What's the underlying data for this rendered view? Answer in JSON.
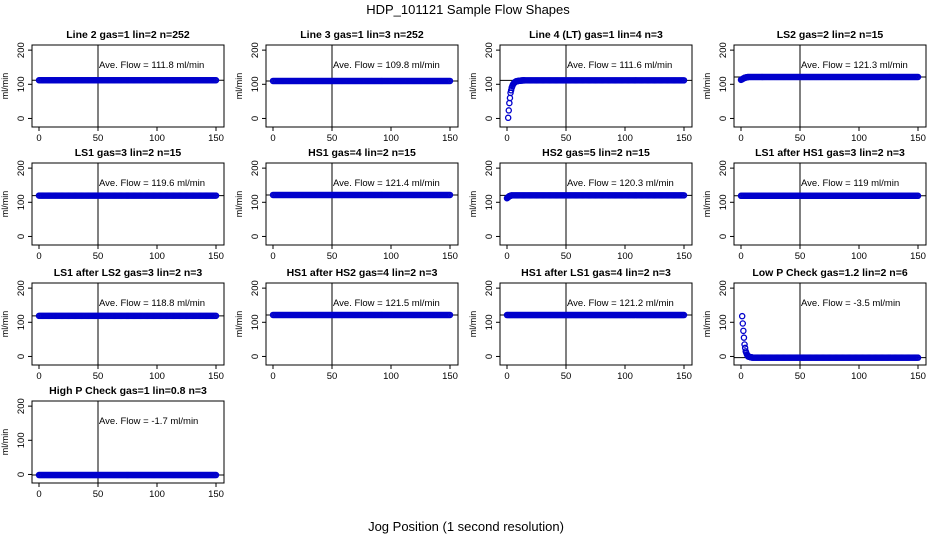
{
  "figure": {
    "title": "HDP_101121  Sample Flow Shapes",
    "xlabel": "Jog Position (1 second resolution)"
  },
  "chart_data": [
    {
      "type": "scatter",
      "title": "Line 2 gas=1 lin=2 n=252",
      "ylabel": "ml/min",
      "annotation": "Ave. Flow =  111.8  ml/min",
      "xlim": [
        0,
        150
      ],
      "ylim": [
        -25,
        215
      ],
      "xticks": [
        0,
        50,
        100,
        150
      ],
      "yticks": [
        0,
        100,
        200
      ],
      "vline": 50,
      "hline": 111.8,
      "series": [
        {
          "points": [
            [
              0,
              111.8
            ],
            [
              150,
              111.8
            ]
          ]
        }
      ],
      "color": "#0000cc"
    },
    {
      "type": "scatter",
      "title": "Line 3 gas=1 lin=3 n=252",
      "ylabel": "ml/min",
      "annotation": "Ave. Flow =  109.8  ml/min",
      "xlim": [
        0,
        150
      ],
      "ylim": [
        -25,
        215
      ],
      "xticks": [
        0,
        50,
        100,
        150
      ],
      "yticks": [
        0,
        100,
        200
      ],
      "vline": 50,
      "hline": 109.8,
      "series": [
        {
          "points": [
            [
              0,
              109.8
            ],
            [
              150,
              109.8
            ]
          ]
        }
      ],
      "color": "#0000cc"
    },
    {
      "type": "scatter",
      "title": "Line 4 (LT) gas=1 lin=4 n=3",
      "ylabel": "ml/min",
      "annotation": "Ave. Flow =  111.6  ml/min",
      "xlim": [
        0,
        150
      ],
      "ylim": [
        -25,
        215
      ],
      "xticks": [
        0,
        50,
        100,
        150
      ],
      "yticks": [
        0,
        100,
        200
      ],
      "vline": 50,
      "hline": 111.6,
      "series": [
        {
          "points": [
            [
              1,
              2
            ],
            [
              2,
              45
            ],
            [
              3,
              75
            ],
            [
              4,
              90
            ],
            [
              5,
              99
            ],
            [
              6,
              104
            ],
            [
              7,
              107
            ],
            [
              8,
              109
            ],
            [
              10,
              110
            ],
            [
              12,
              111
            ],
            [
              15,
              111.6
            ],
            [
              150,
              111.6
            ]
          ]
        }
      ],
      "color": "#0000cc"
    },
    {
      "type": "scatter",
      "title": "LS2 gas=2 lin=2 n=15",
      "ylabel": "ml/min",
      "annotation": "Ave. Flow =  121.3  ml/min",
      "xlim": [
        0,
        150
      ],
      "ylim": [
        -25,
        215
      ],
      "xticks": [
        0,
        50,
        100,
        150
      ],
      "yticks": [
        0,
        100,
        200
      ],
      "vline": 50,
      "hline": 121.3,
      "series": [
        {
          "points": [
            [
              0,
              113
            ],
            [
              3,
              119
            ],
            [
              6,
              121.3
            ],
            [
              150,
              121.3
            ]
          ]
        }
      ],
      "color": "#0000cc"
    },
    {
      "type": "scatter",
      "title": "LS1 gas=3 lin=2 n=15",
      "ylabel": "ml/min",
      "annotation": "Ave. Flow =  119.6  ml/min",
      "xlim": [
        0,
        150
      ],
      "ylim": [
        -25,
        215
      ],
      "xticks": [
        0,
        50,
        100,
        150
      ],
      "yticks": [
        0,
        100,
        200
      ],
      "vline": 50,
      "hline": 119.6,
      "series": [
        {
          "points": [
            [
              0,
              119.6
            ],
            [
              150,
              119.6
            ]
          ]
        }
      ],
      "color": "#0000cc"
    },
    {
      "type": "scatter",
      "title": "HS1 gas=4 lin=2 n=15",
      "ylabel": "ml/min",
      "annotation": "Ave. Flow =  121.4  ml/min",
      "xlim": [
        0,
        150
      ],
      "ylim": [
        -25,
        215
      ],
      "xticks": [
        0,
        50,
        100,
        150
      ],
      "yticks": [
        0,
        100,
        200
      ],
      "vline": 50,
      "hline": 121.4,
      "series": [
        {
          "points": [
            [
              0,
              121.4
            ],
            [
              150,
              121.4
            ]
          ]
        }
      ],
      "color": "#0000cc"
    },
    {
      "type": "scatter",
      "title": "HS2 gas=5 lin=2 n=15",
      "ylabel": "ml/min",
      "annotation": "Ave. Flow =  120.3  ml/min",
      "xlim": [
        0,
        150
      ],
      "ylim": [
        -25,
        215
      ],
      "xticks": [
        0,
        50,
        100,
        150
      ],
      "yticks": [
        0,
        100,
        200
      ],
      "vline": 50,
      "hline": 120.3,
      "series": [
        {
          "points": [
            [
              0,
              112
            ],
            [
              2,
              118
            ],
            [
              4,
              120.3
            ],
            [
              150,
              120.3
            ]
          ]
        }
      ],
      "color": "#0000cc"
    },
    {
      "type": "scatter",
      "title": "LS1 after HS1 gas=3 lin=2 n=3",
      "ylabel": "ml/min",
      "annotation": "Ave. Flow =  119  ml/min",
      "xlim": [
        0,
        150
      ],
      "ylim": [
        -25,
        215
      ],
      "xticks": [
        0,
        50,
        100,
        150
      ],
      "yticks": [
        0,
        100,
        200
      ],
      "vline": 50,
      "hline": 119,
      "series": [
        {
          "points": [
            [
              0,
              119
            ],
            [
              150,
              119
            ]
          ]
        }
      ],
      "color": "#0000cc"
    },
    {
      "type": "scatter",
      "title": "LS1 after LS2 gas=3 lin=2 n=3",
      "ylabel": "ml/min",
      "annotation": "Ave. Flow =  118.8  ml/min",
      "xlim": [
        0,
        150
      ],
      "ylim": [
        -25,
        215
      ],
      "xticks": [
        0,
        50,
        100,
        150
      ],
      "yticks": [
        0,
        100,
        200
      ],
      "vline": 50,
      "hline": 118.8,
      "series": [
        {
          "points": [
            [
              0,
              118.8
            ],
            [
              150,
              118.8
            ]
          ]
        }
      ],
      "color": "#0000cc"
    },
    {
      "type": "scatter",
      "title": "HS1 after HS2 gas=4 lin=2 n=3",
      "ylabel": "ml/min",
      "annotation": "Ave. Flow =  121.5  ml/min",
      "xlim": [
        0,
        150
      ],
      "ylim": [
        -25,
        215
      ],
      "xticks": [
        0,
        50,
        100,
        150
      ],
      "yticks": [
        0,
        100,
        200
      ],
      "vline": 50,
      "hline": 121.5,
      "series": [
        {
          "points": [
            [
              0,
              121.5
            ],
            [
              150,
              121.5
            ]
          ]
        }
      ],
      "color": "#0000cc"
    },
    {
      "type": "scatter",
      "title": "HS1 after LS1 gas=4 lin=2 n=3",
      "ylabel": "ml/min",
      "annotation": "Ave. Flow =  121.2  ml/min",
      "xlim": [
        0,
        150
      ],
      "ylim": [
        -25,
        215
      ],
      "xticks": [
        0,
        50,
        100,
        150
      ],
      "yticks": [
        0,
        100,
        200
      ],
      "vline": 50,
      "hline": 121.2,
      "series": [
        {
          "points": [
            [
              0,
              121.2
            ],
            [
              150,
              121.2
            ]
          ]
        }
      ],
      "color": "#0000cc"
    },
    {
      "type": "scatter",
      "title": "Low P Check gas=1.2 lin=2 n=6",
      "ylabel": "ml/min",
      "annotation": "Ave. Flow =  -3.5  ml/min",
      "xlim": [
        0,
        150
      ],
      "ylim": [
        -25,
        215
      ],
      "xticks": [
        0,
        50,
        100,
        150
      ],
      "yticks": [
        0,
        100,
        200
      ],
      "vline": 50,
      "hline": -3.5,
      "series": [
        {
          "points": [
            [
              1,
              118
            ],
            [
              2,
              75
            ],
            [
              3,
              35
            ],
            [
              4,
              15
            ],
            [
              5,
              6
            ],
            [
              6,
              0
            ],
            [
              8,
              -2
            ],
            [
              10,
              -3.5
            ],
            [
              150,
              -3.5
            ]
          ]
        }
      ],
      "color": "#0000cc"
    },
    {
      "type": "scatter",
      "title": "High P Check gas=1 lin=0.8 n=3",
      "ylabel": "ml/min",
      "annotation": "Ave. Flow =  -1.7  ml/min",
      "xlim": [
        0,
        150
      ],
      "ylim": [
        -25,
        215
      ],
      "xticks": [
        0,
        50,
        100,
        150
      ],
      "yticks": [
        0,
        100,
        200
      ],
      "vline": 50,
      "hline": -1.7,
      "series": [
        {
          "points": [
            [
              0,
              -1.7
            ],
            [
              150,
              -1.7
            ]
          ]
        }
      ],
      "color": "#0000cc"
    }
  ]
}
